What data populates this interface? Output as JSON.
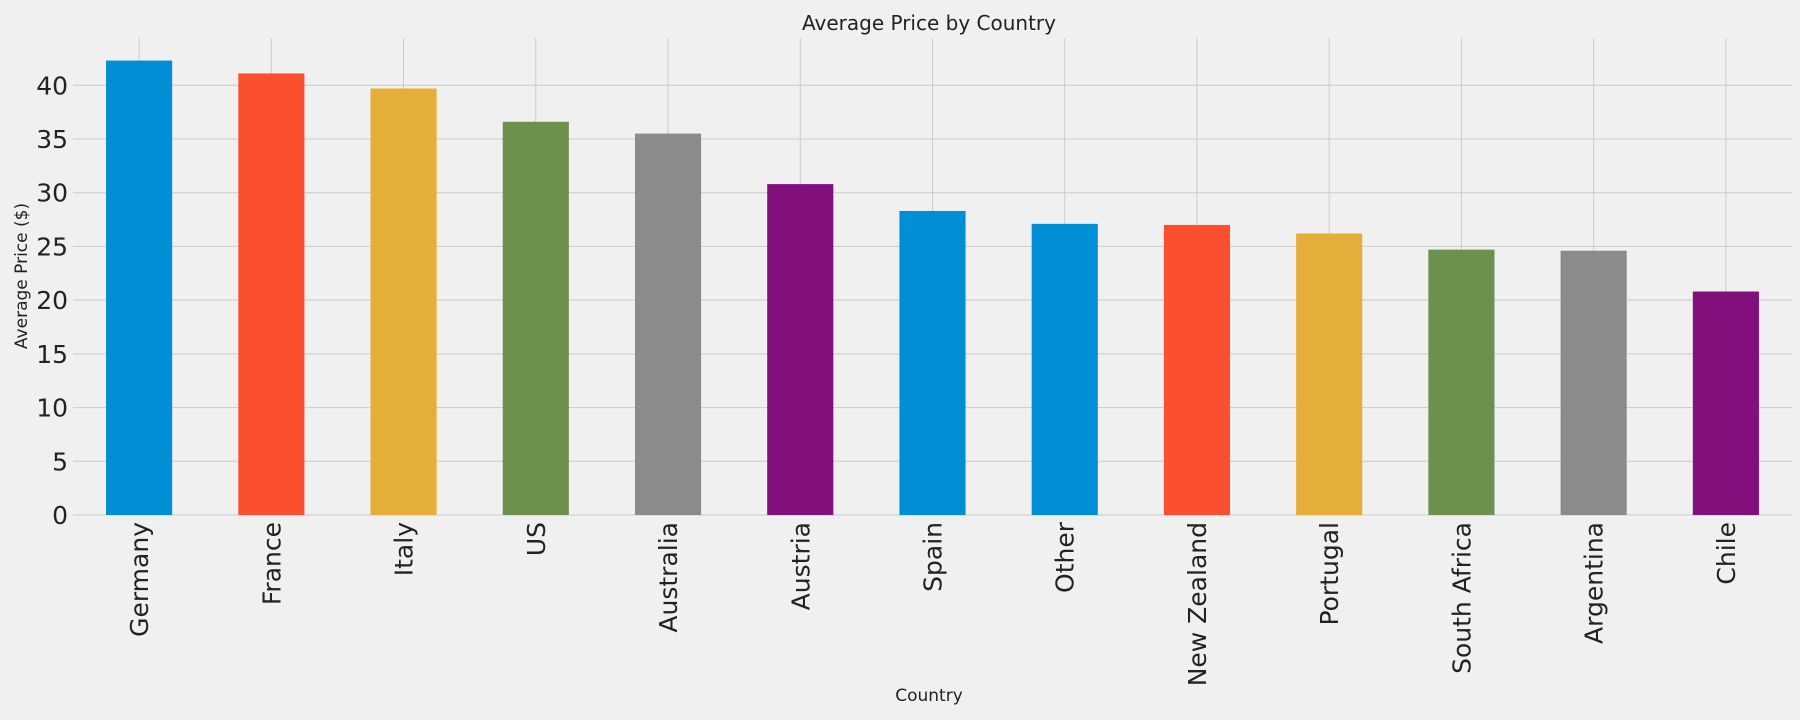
{
  "chart_data": {
    "type": "bar",
    "title": "Average Price by Country",
    "xlabel": "Country",
    "ylabel": "Average Price ($)",
    "categories": [
      "Germany",
      "France",
      "Italy",
      "US",
      "Australia",
      "Austria",
      "Spain",
      "Other",
      "New Zealand",
      "Portugal",
      "South Africa",
      "Argentina",
      "Chile"
    ],
    "values": [
      42.3,
      41.1,
      39.7,
      36.6,
      35.5,
      30.8,
      28.3,
      27.1,
      27.0,
      26.2,
      24.7,
      24.6,
      20.8
    ],
    "colors": [
      "#008fd5",
      "#fc4f30",
      "#e5ae38",
      "#6d904f",
      "#8b8b8b",
      "#810f7c",
      "#008fd5",
      "#008fd5",
      "#fc4f30",
      "#e5ae38",
      "#6d904f",
      "#8b8b8b",
      "#810f7c"
    ],
    "yticks": [
      0,
      5,
      10,
      15,
      20,
      25,
      30,
      35,
      40
    ],
    "ylim": [
      0,
      44.4
    ],
    "grid": true,
    "background": "#f0f0f0"
  }
}
